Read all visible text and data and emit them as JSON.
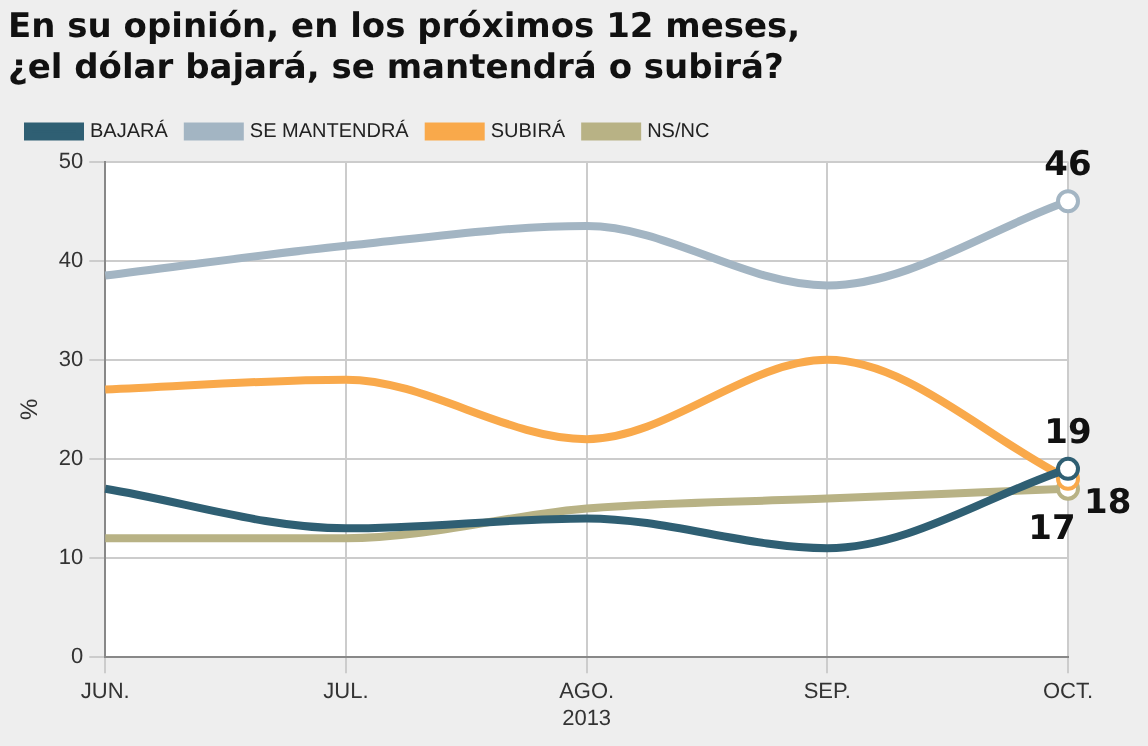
{
  "chart_data": {
    "type": "line",
    "title": "En su opinión, en los próximos 12 meses,\n¿el dólar bajará, se mantendrá o subirá?",
    "ylabel": "%",
    "categories": [
      "JUN.",
      "JUL.",
      "AGO.\n2013",
      "SEP.",
      "OCT."
    ],
    "series": [
      {
        "name": "BAJARÁ",
        "color": "#2f5f73",
        "values": [
          17,
          13,
          14,
          11,
          19
        ],
        "value_labels": [
          null,
          null,
          null,
          null,
          "19"
        ]
      },
      {
        "name": "SE MANTENDRÁ",
        "color": "#a3b5c3",
        "values": [
          38.5,
          41.5,
          43.5,
          37.5,
          46
        ],
        "value_labels": [
          null,
          null,
          null,
          null,
          "46"
        ]
      },
      {
        "name": "SUBIRÁ",
        "color": "#f9a94b",
        "values": [
          27,
          28,
          22,
          30,
          18
        ],
        "value_labels": [
          null,
          null,
          null,
          null,
          "18"
        ]
      },
      {
        "name": "NS/NC",
        "color": "#b8b285",
        "values": [
          12,
          12,
          15,
          16,
          17
        ],
        "value_labels": [
          null,
          null,
          null,
          null,
          "17"
        ]
      }
    ],
    "ylim": [
      0,
      50
    ],
    "yticks": [
      0,
      10,
      20,
      30,
      40,
      50
    ],
    "grid": true,
    "legend": "top"
  }
}
